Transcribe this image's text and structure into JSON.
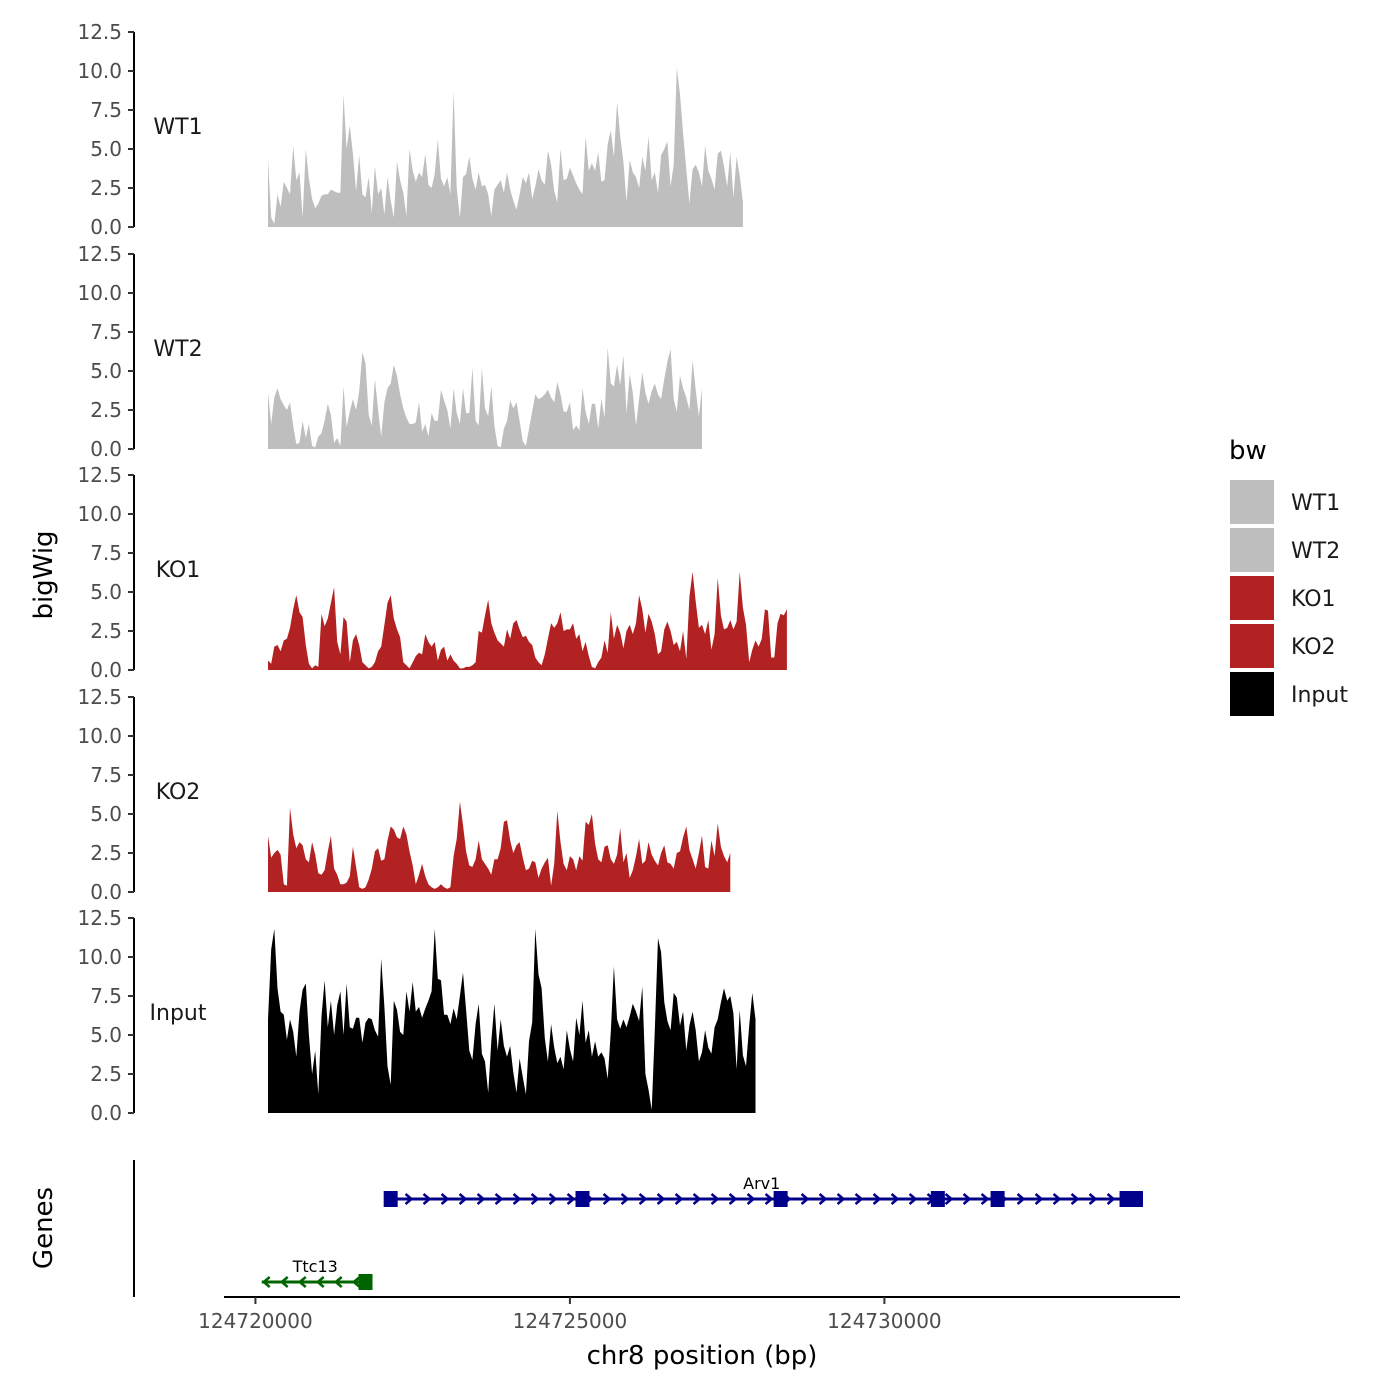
{
  "chart_data": {
    "type": "area",
    "ylabel": "bigWig",
    "genes_label": "Genes",
    "xlabel": "chr8 position (bp)",
    "xlim": [
      124719500,
      124734700
    ],
    "x_ticks": [
      124720000,
      124725000,
      124730000
    ],
    "x_tick_labels": [
      "124720000",
      "124725000",
      "124730000"
    ],
    "ylim": [
      0,
      12.5
    ],
    "y_ticks": [
      0,
      2.5,
      5,
      7.5,
      10,
      12.5
    ],
    "y_tick_labels": [
      "0.0",
      "2.5",
      "5.0",
      "7.5",
      "10.0",
      "12.5"
    ],
    "x_start": 124720200,
    "x_step": 50,
    "legend": {
      "title": "bw",
      "placement": "right",
      "entries": [
        {
          "label": "WT1",
          "color": "#bebebe"
        },
        {
          "label": "WT2",
          "color": "#bebebe"
        },
        {
          "label": "KO1",
          "color": "#b22222"
        },
        {
          "label": "KO2",
          "color": "#b22222"
        },
        {
          "label": "Input",
          "color": "#000000"
        }
      ]
    },
    "series": [
      {
        "name": "WT1",
        "color": "#bebebe",
        "values": [
          4.3,
          0.6,
          0.2,
          2.1,
          1.3,
          2.9,
          2.5,
          2.1,
          5.2,
          3.0,
          3.5,
          0.6,
          5.0,
          3.1,
          1.8,
          1.2,
          1.5,
          2.0,
          2.1,
          2.1,
          2.4,
          2.3,
          2.2,
          2.2,
          8.5,
          5.0,
          6.5,
          4.7,
          2.3,
          4.6,
          2.1,
          1.9,
          3.2,
          0.9,
          3.9,
          2.1,
          2.5,
          0.8,
          3.2,
          1.7,
          0.6,
          4.2,
          3.0,
          2.2,
          0.7,
          5.0,
          3.6,
          2.9,
          3.5,
          3.2,
          4.7,
          2.7,
          2.5,
          3.4,
          5.6,
          3.1,
          2.6,
          3.2,
          2.1,
          8.7,
          2.5,
          0.6,
          3.2,
          3.4,
          4.5,
          3.1,
          2.4,
          3.5,
          2.6,
          2.7,
          2.1,
          0.7,
          2.4,
          2.7,
          3.0,
          2.2,
          3.5,
          2.4,
          1.7,
          1.1,
          2.1,
          3.2,
          2.8,
          3.5,
          1.8,
          2.6,
          3.7,
          3.0,
          2.7,
          4.9,
          4.0,
          2.3,
          1.6,
          5.0,
          3.0,
          3.1,
          3.8,
          3.3,
          2.8,
          2.4,
          2.1,
          5.8,
          3.6,
          4.1,
          3.6,
          4.8,
          2.9,
          3.0,
          5.3,
          6.2,
          4.5,
          8.0,
          5.8,
          4.2,
          1.6,
          4.3,
          3.5,
          3.2,
          2.5,
          4.5,
          3.6,
          5.8,
          3.0,
          3.5,
          2.2,
          4.6,
          5.0,
          5.5,
          2.6,
          4.0,
          10.2,
          8.5,
          6.0,
          3.7,
          1.5,
          3.7,
          4.0,
          3.5,
          2.6,
          5.2,
          3.6,
          3.1,
          2.4,
          4.7,
          4.9,
          3.9,
          2.6,
          4.8,
          1.9,
          4.5,
          3.3,
          1.6
        ]
      },
      {
        "name": "WT2",
        "color": "#bebebe",
        "values": [
          3.6,
          1.6,
          3.3,
          3.9,
          3.2,
          2.8,
          2.5,
          3.0,
          1.5,
          0.3,
          0.4,
          1.8,
          0.7,
          1.6,
          0.2,
          0.1,
          0.8,
          1.0,
          1.8,
          2.9,
          2.2,
          0.4,
          0.7,
          0.2,
          4.0,
          1.4,
          2.4,
          3.2,
          2.5,
          3.7,
          6.2,
          5.5,
          2.2,
          1.5,
          4.5,
          2.5,
          0.8,
          3.0,
          3.9,
          4.2,
          5.4,
          4.7,
          3.5,
          2.6,
          2.0,
          1.6,
          1.6,
          1.7,
          3.0,
          1.1,
          1.6,
          0.8,
          2.3,
          1.8,
          1.8,
          3.8,
          3.1,
          2.5,
          1.3,
          3.9,
          2.3,
          1.6,
          3.9,
          2.3,
          2.3,
          5.2,
          1.8,
          1.5,
          5.2,
          2.6,
          2.1,
          4.0,
          1.5,
          0.2,
          0.1,
          1.3,
          1.8,
          3.1,
          2.6,
          3.0,
          1.8,
          0.5,
          0.2,
          1.3,
          2.4,
          3.5,
          3.2,
          3.3,
          3.5,
          3.8,
          3.3,
          3.0,
          4.3,
          3.5,
          2.4,
          2.4,
          3.0,
          1.2,
          1.5,
          1.2,
          3.9,
          2.4,
          1.6,
          2.9,
          2.9,
          1.3,
          3.2,
          2.0,
          6.5,
          4.2,
          4.0,
          5.4,
          4.1,
          6.0,
          2.3,
          4.8,
          3.6,
          1.5,
          3.2,
          4.9,
          3.6,
          2.9,
          3.7,
          4.2,
          3.5,
          3.2,
          4.5,
          5.6,
          6.4,
          3.2,
          2.4,
          4.7,
          3.9,
          3.3,
          2.5,
          5.7,
          3.8,
          2.1,
          3.9
        ]
      },
      {
        "name": "KO1",
        "color": "#b22222",
        "values": [
          0.6,
          0.4,
          1.5,
          1.6,
          1.2,
          1.9,
          2.0,
          2.7,
          3.9,
          4.8,
          3.7,
          3.4,
          1.6,
          0.4,
          0.1,
          0.3,
          0.2,
          3.6,
          2.8,
          3.3,
          4.3,
          5.3,
          1.8,
          1.0,
          3.4,
          3.1,
          0.5,
          1.9,
          2.3,
          1.6,
          0.5,
          0.3,
          0.1,
          0.2,
          0.5,
          1.2,
          1.5,
          2.9,
          4.3,
          4.8,
          3.3,
          2.6,
          2.1,
          0.5,
          0.3,
          0.1,
          0.5,
          0.9,
          1.1,
          1.0,
          2.3,
          1.8,
          1.5,
          1.8,
          0.6,
          1.3,
          1.5,
          0.6,
          1.0,
          0.6,
          0.4,
          0.1,
          0.1,
          0.2,
          0.2,
          0.3,
          0.5,
          2.5,
          2.4,
          3.5,
          4.5,
          3.0,
          2.4,
          1.9,
          1.7,
          1.5,
          2.6,
          2.0,
          3.0,
          3.2,
          2.6,
          2.1,
          2.2,
          1.8,
          1.6,
          0.8,
          0.5,
          0.3,
          1.0,
          2.0,
          3.0,
          2.7,
          3.0,
          3.7,
          2.5,
          2.6,
          2.6,
          3.0,
          2.0,
          2.3,
          1.2,
          1.8,
          0.9,
          0.2,
          0.1,
          0.5,
          0.8,
          1.9,
          1.1,
          3.7,
          2.0,
          2.9,
          2.4,
          1.4,
          2.5,
          2.9,
          2.3,
          3.0,
          4.8,
          3.9,
          2.4,
          3.6,
          3.1,
          2.3,
          1.0,
          1.2,
          2.6,
          3.1,
          2.5,
          1.6,
          1.8,
          1.2,
          2.5,
          0.7,
          4.7,
          6.3,
          4.4,
          2.7,
          2.9,
          2.3,
          3.2,
          1.3,
          2.3,
          5.9,
          3.5,
          2.6,
          2.7,
          3.2,
          2.6,
          3.1,
          6.3,
          4.0,
          2.9,
          0.5,
          1.3,
          1.9,
          1.5,
          2.0,
          3.9,
          3.8,
          0.8,
          0.8,
          3.0,
          3.6,
          3.5,
          3.9
        ]
      },
      {
        "name": "KO2",
        "color": "#b22222",
        "values": [
          3.6,
          2.2,
          2.5,
          2.7,
          2.4,
          0.5,
          0.4,
          5.4,
          3.7,
          2.8,
          3.2,
          3.0,
          2.1,
          1.9,
          3.2,
          2.4,
          1.2,
          1.1,
          1.4,
          2.6,
          3.6,
          1.5,
          1.1,
          0.5,
          0.5,
          0.6,
          1.0,
          2.9,
          1.6,
          0.3,
          0.2,
          0.3,
          0.8,
          1.5,
          2.6,
          2.8,
          2.0,
          2.1,
          3.3,
          4.2,
          4.0,
          3.5,
          3.4,
          4.2,
          3.7,
          2.6,
          1.7,
          0.5,
          1.1,
          1.8,
          1.0,
          0.5,
          0.3,
          0.2,
          0.3,
          0.5,
          0.3,
          0.2,
          0.3,
          2.3,
          3.4,
          5.8,
          4.3,
          2.6,
          1.7,
          1.6,
          2.1,
          3.3,
          2.1,
          1.8,
          1.5,
          1.1,
          2.1,
          2.1,
          2.8,
          4.5,
          4.6,
          3.3,
          2.5,
          3.0,
          3.2,
          2.2,
          1.4,
          1.5,
          2.0,
          1.9,
          0.9,
          1.5,
          1.9,
          2.2,
          0.4,
          1.8,
          5.2,
          3.2,
          1.8,
          1.4,
          2.3,
          2.1,
          1.4,
          2.3,
          2.0,
          4.5,
          4.3,
          5.0,
          3.1,
          2.1,
          1.9,
          2.9,
          3.0,
          2.1,
          1.8,
          2.4,
          4.1,
          1.9,
          2.5,
          0.9,
          1.4,
          2.3,
          3.4,
          1.8,
          2.0,
          3.2,
          2.4,
          2.0,
          1.7,
          2.5,
          3.0,
          1.9,
          1.8,
          1.5,
          2.5,
          2.6,
          3.5,
          4.2,
          2.7,
          2.1,
          1.5,
          2.5,
          3.6,
          1.6,
          1.5,
          3.3,
          2.3,
          4.4,
          2.9,
          2.3,
          1.9,
          2.5
        ]
      },
      {
        "name": "Input",
        "color": "#000000",
        "values": [
          6.0,
          10.5,
          11.8,
          8.0,
          6.5,
          6.3,
          4.7,
          6.0,
          5.2,
          3.6,
          6.5,
          7.9,
          8.3,
          5.0,
          2.5,
          4.0,
          1.2,
          6.2,
          8.5,
          5.5,
          7.2,
          5.0,
          6.9,
          7.8,
          5.0,
          8.3,
          5.5,
          5.4,
          6.1,
          6.1,
          4.5,
          5.8,
          6.1,
          6.0,
          5.3,
          4.9,
          9.9,
          6.8,
          3.0,
          1.8,
          7.2,
          6.6,
          5.2,
          5.0,
          7.8,
          6.5,
          8.4,
          6.5,
          6.8,
          6.1,
          6.7,
          7.2,
          7.8,
          11.8,
          8.6,
          8.5,
          6.3,
          6.3,
          5.7,
          6.7,
          6.0,
          7.5,
          9.0,
          6.6,
          4.0,
          3.4,
          5.7,
          7.0,
          3.8,
          3.3,
          1.3,
          4.6,
          7.0,
          4.0,
          6.0,
          4.3,
          3.6,
          4.3,
          2.6,
          1.3,
          3.5,
          2.3,
          1.2,
          4.6,
          5.8,
          11.8,
          8.9,
          8.0,
          4.8,
          3.3,
          5.7,
          4.2,
          3.2,
          3.6,
          2.8,
          5.3,
          4.1,
          3.3,
          6.1,
          5.0,
          7.2,
          4.5,
          5.3,
          3.6,
          4.6,
          3.6,
          3.9,
          3.5,
          2.2,
          5.2,
          9.4,
          6.0,
          5.4,
          6.0,
          5.5,
          6.2,
          7.0,
          6.5,
          5.9,
          8.1,
          2.5,
          1.5,
          0.2,
          5.3,
          11.2,
          10.3,
          7.1,
          5.9,
          5.3,
          7.7,
          7.4,
          5.6,
          6.5,
          4.0,
          5.6,
          6.5,
          5.3,
          3.3,
          3.9,
          5.3,
          4.2,
          3.8,
          5.5,
          6.0,
          7.1,
          8.0,
          7.2,
          7.5,
          6.4,
          2.8,
          6.6,
          3.7,
          3.0,
          5.6,
          7.7,
          6.0
        ]
      }
    ],
    "genes": [
      {
        "name": "Arv1",
        "strand": "+",
        "color": "#00008b",
        "start": 124722100,
        "end": 124734000,
        "exons": [
          124722150,
          124725200,
          124728350,
          124730850,
          124731800,
          124733850,
          124734000
        ]
      },
      {
        "name": "Ttc13",
        "strand": "-",
        "color": "#006400",
        "start": 124720100,
        "end": 124721800,
        "exons": [
          124721750
        ]
      }
    ]
  }
}
